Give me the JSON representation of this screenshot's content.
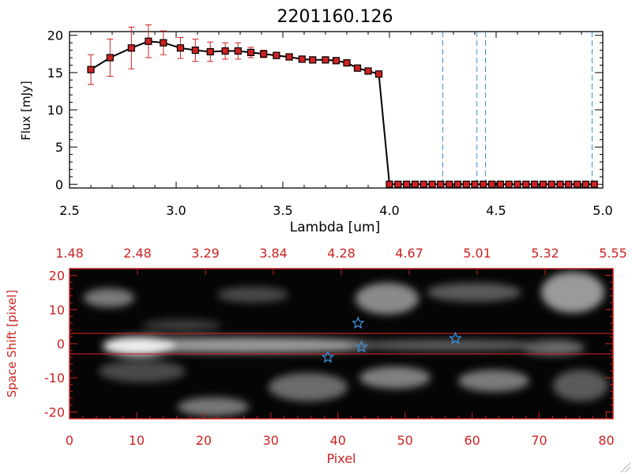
{
  "chart_data": [
    {
      "type": "line",
      "title": "2201160.126",
      "xlabel": "Lambda [um]",
      "ylabel": "Flux [mJy]",
      "xlim": [
        2.5,
        5.0
      ],
      "ylim": [
        -0.5,
        20.5
      ],
      "x_ticks": [
        "2.5",
        "3.0",
        "3.5",
        "4.0",
        "4.5",
        "5.0"
      ],
      "y_ticks": [
        "0",
        "5",
        "10",
        "15",
        "20"
      ],
      "colors": {
        "line": "#000000",
        "marker": "#cc2222",
        "error": "#cc2222",
        "vline": "#3a8fd9"
      },
      "series": [
        {
          "x": [
            2.6,
            2.69,
            2.79,
            2.87,
            2.94,
            3.02,
            3.09,
            3.16,
            3.23,
            3.29,
            3.35,
            3.41,
            3.47,
            3.53,
            3.59,
            3.64,
            3.7,
            3.75,
            3.8,
            3.85,
            3.9,
            3.95,
            4.0,
            4.04,
            4.08,
            4.12,
            4.16,
            4.2,
            4.24,
            4.28,
            4.32,
            4.36,
            4.4,
            4.44,
            4.48,
            4.52,
            4.56,
            4.6,
            4.64,
            4.68,
            4.72,
            4.76,
            4.8,
            4.84,
            4.88,
            4.92,
            4.96
          ],
          "y": [
            15.4,
            17.0,
            18.3,
            19.2,
            19.0,
            18.3,
            18.0,
            17.8,
            17.9,
            17.9,
            17.7,
            17.5,
            17.3,
            17.1,
            16.8,
            16.7,
            16.7,
            16.6,
            16.3,
            15.6,
            15.2,
            14.8,
            0,
            0,
            0,
            0,
            0,
            0,
            0,
            0,
            0,
            0,
            0,
            0,
            0,
            0,
            0,
            0,
            0,
            0,
            0,
            0,
            0,
            0,
            0,
            0,
            0
          ],
          "err": [
            2.0,
            2.5,
            2.8,
            2.2,
            1.6,
            1.4,
            1.5,
            1.3,
            1.1,
            1.1,
            0.7,
            0.5,
            0.4,
            0.4,
            0.3,
            0.3,
            0.3,
            0.3,
            0.3,
            0.3,
            0.3,
            0.3,
            0,
            0,
            0,
            0,
            0,
            0,
            0,
            0,
            0,
            0,
            0,
            0,
            0,
            0,
            0,
            0,
            0,
            0,
            0,
            0,
            0,
            0,
            0,
            0,
            0
          ]
        }
      ],
      "vlines": [
        4.25,
        4.41,
        4.45,
        4.95
      ],
      "grid": false
    },
    {
      "type": "heatmap",
      "xlabel": "Pixel",
      "ylabel": "Space Shift [pixel]",
      "xlim": [
        0,
        81
      ],
      "ylim": [
        -22,
        22
      ],
      "x_ticks": [
        "0",
        "10",
        "20",
        "30",
        "40",
        "50",
        "60",
        "70",
        "80"
      ],
      "y_ticks": [
        "-20",
        "-10",
        "0",
        "10",
        "20"
      ],
      "top_axis_ticks": [
        "1.48",
        "2.48",
        "3.29",
        "3.84",
        "4.28",
        "4.67",
        "5.01",
        "5.32",
        "5.55"
      ],
      "colors": {
        "frame": "#cc2222",
        "stars": "#3a8fd9",
        "band": "#cc2222"
      },
      "band_lines": [
        3,
        -3
      ],
      "markers": [
        {
          "pixel": 43,
          "shift": 6
        },
        {
          "pixel": 43.5,
          "shift": -1
        },
        {
          "pixel": 38.5,
          "shift": -4
        },
        {
          "pixel": 57.5,
          "shift": 1.5
        }
      ]
    }
  ]
}
